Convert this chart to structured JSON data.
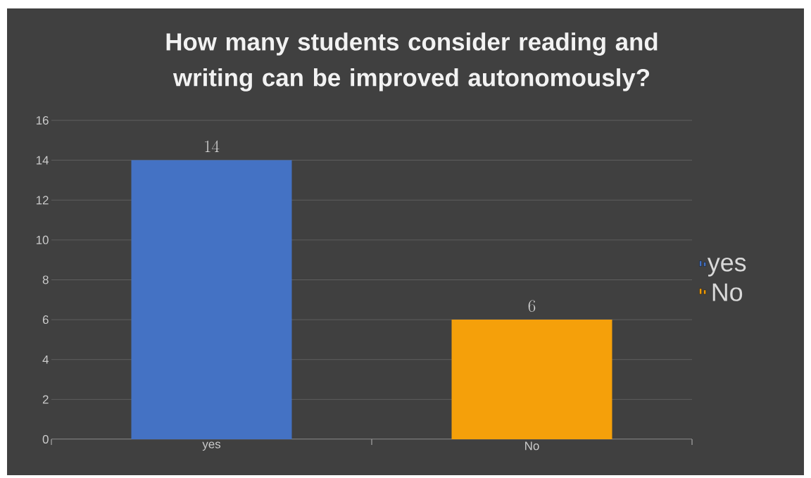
{
  "chart_data": {
    "type": "bar",
    "title": "How many students consider reading and writing can be improved autonomously?",
    "categories": [
      "yes",
      "No"
    ],
    "series": [
      {
        "name": "yes",
        "color": "#4472c4",
        "values": [
          14,
          null
        ]
      },
      {
        "name": "No",
        "color": "#f5a00a",
        "values": [
          null,
          6
        ]
      }
    ],
    "ylim": [
      0,
      16
    ],
    "yticks": [
      0,
      2,
      4,
      6,
      8,
      10,
      12,
      14,
      16
    ],
    "grid": "y",
    "legend": "right",
    "data_labels": true
  }
}
